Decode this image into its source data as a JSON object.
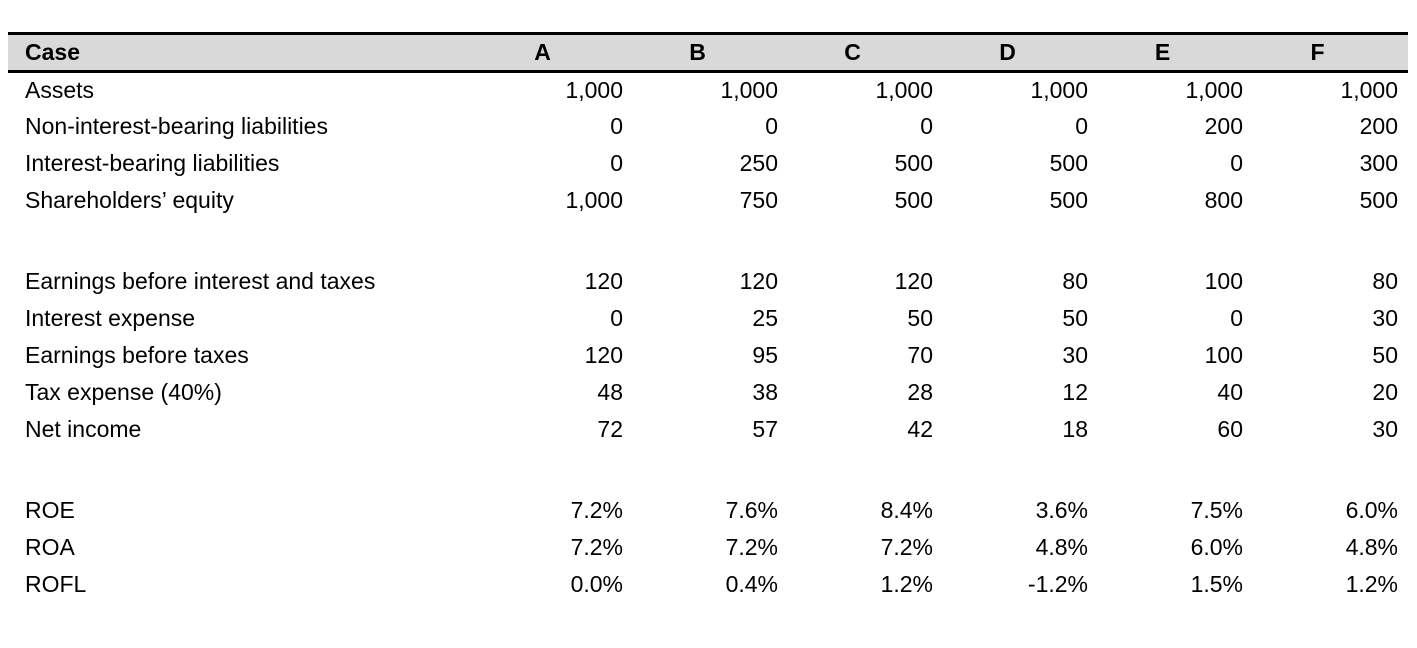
{
  "table": {
    "header": {
      "label": "Case",
      "columns": [
        "A",
        "B",
        "C",
        "D",
        "E",
        "F"
      ]
    },
    "sections": [
      {
        "name": "balance-sheet",
        "rows": [
          {
            "label": "Assets",
            "values": [
              "1,000",
              "1,000",
              "1,000",
              "1,000",
              "1,000",
              "1,000"
            ]
          },
          {
            "label": "Non-interest-bearing liabilities",
            "values": [
              "0",
              "0",
              "0",
              "0",
              "200",
              "200"
            ]
          },
          {
            "label": "Interest-bearing liabilities",
            "values": [
              "0",
              "250",
              "500",
              "500",
              "0",
              "300"
            ]
          },
          {
            "label": "Shareholders’ equity",
            "values": [
              "1,000",
              "750",
              "500",
              "500",
              "800",
              "500"
            ]
          }
        ]
      },
      {
        "name": "income-statement",
        "rows": [
          {
            "label": "Earnings before interest and taxes",
            "values": [
              "120",
              "120",
              "120",
              "80",
              "100",
              "80"
            ]
          },
          {
            "label": "Interest expense",
            "values": [
              "0",
              "25",
              "50",
              "50",
              "0",
              "30"
            ]
          },
          {
            "label": "Earnings before taxes",
            "values": [
              "120",
              "95",
              "70",
              "30",
              "100",
              "50"
            ]
          },
          {
            "label": "Tax expense (40%)",
            "values": [
              "48",
              "38",
              "28",
              "12",
              "40",
              "20"
            ]
          },
          {
            "label": "Net income",
            "values": [
              "72",
              "57",
              "42",
              "18",
              "60",
              "30"
            ]
          }
        ]
      },
      {
        "name": "ratios",
        "rows": [
          {
            "label": "ROE",
            "values": [
              "7.2%",
              "7.6%",
              "8.4%",
              "3.6%",
              "7.5%",
              "6.0%"
            ]
          },
          {
            "label": "ROA",
            "values": [
              "7.2%",
              "7.2%",
              "7.2%",
              "4.8%",
              "6.0%",
              "4.8%"
            ]
          },
          {
            "label": "ROFL",
            "values": [
              "0.0%",
              "0.4%",
              "1.2%",
              "-1.2%",
              "1.5%",
              "1.2%"
            ]
          }
        ]
      }
    ],
    "colors": {
      "page_bg": "#ffffff",
      "header_bg": "#d9d9d9",
      "border": "#000000",
      "text": "#000000"
    }
  }
}
